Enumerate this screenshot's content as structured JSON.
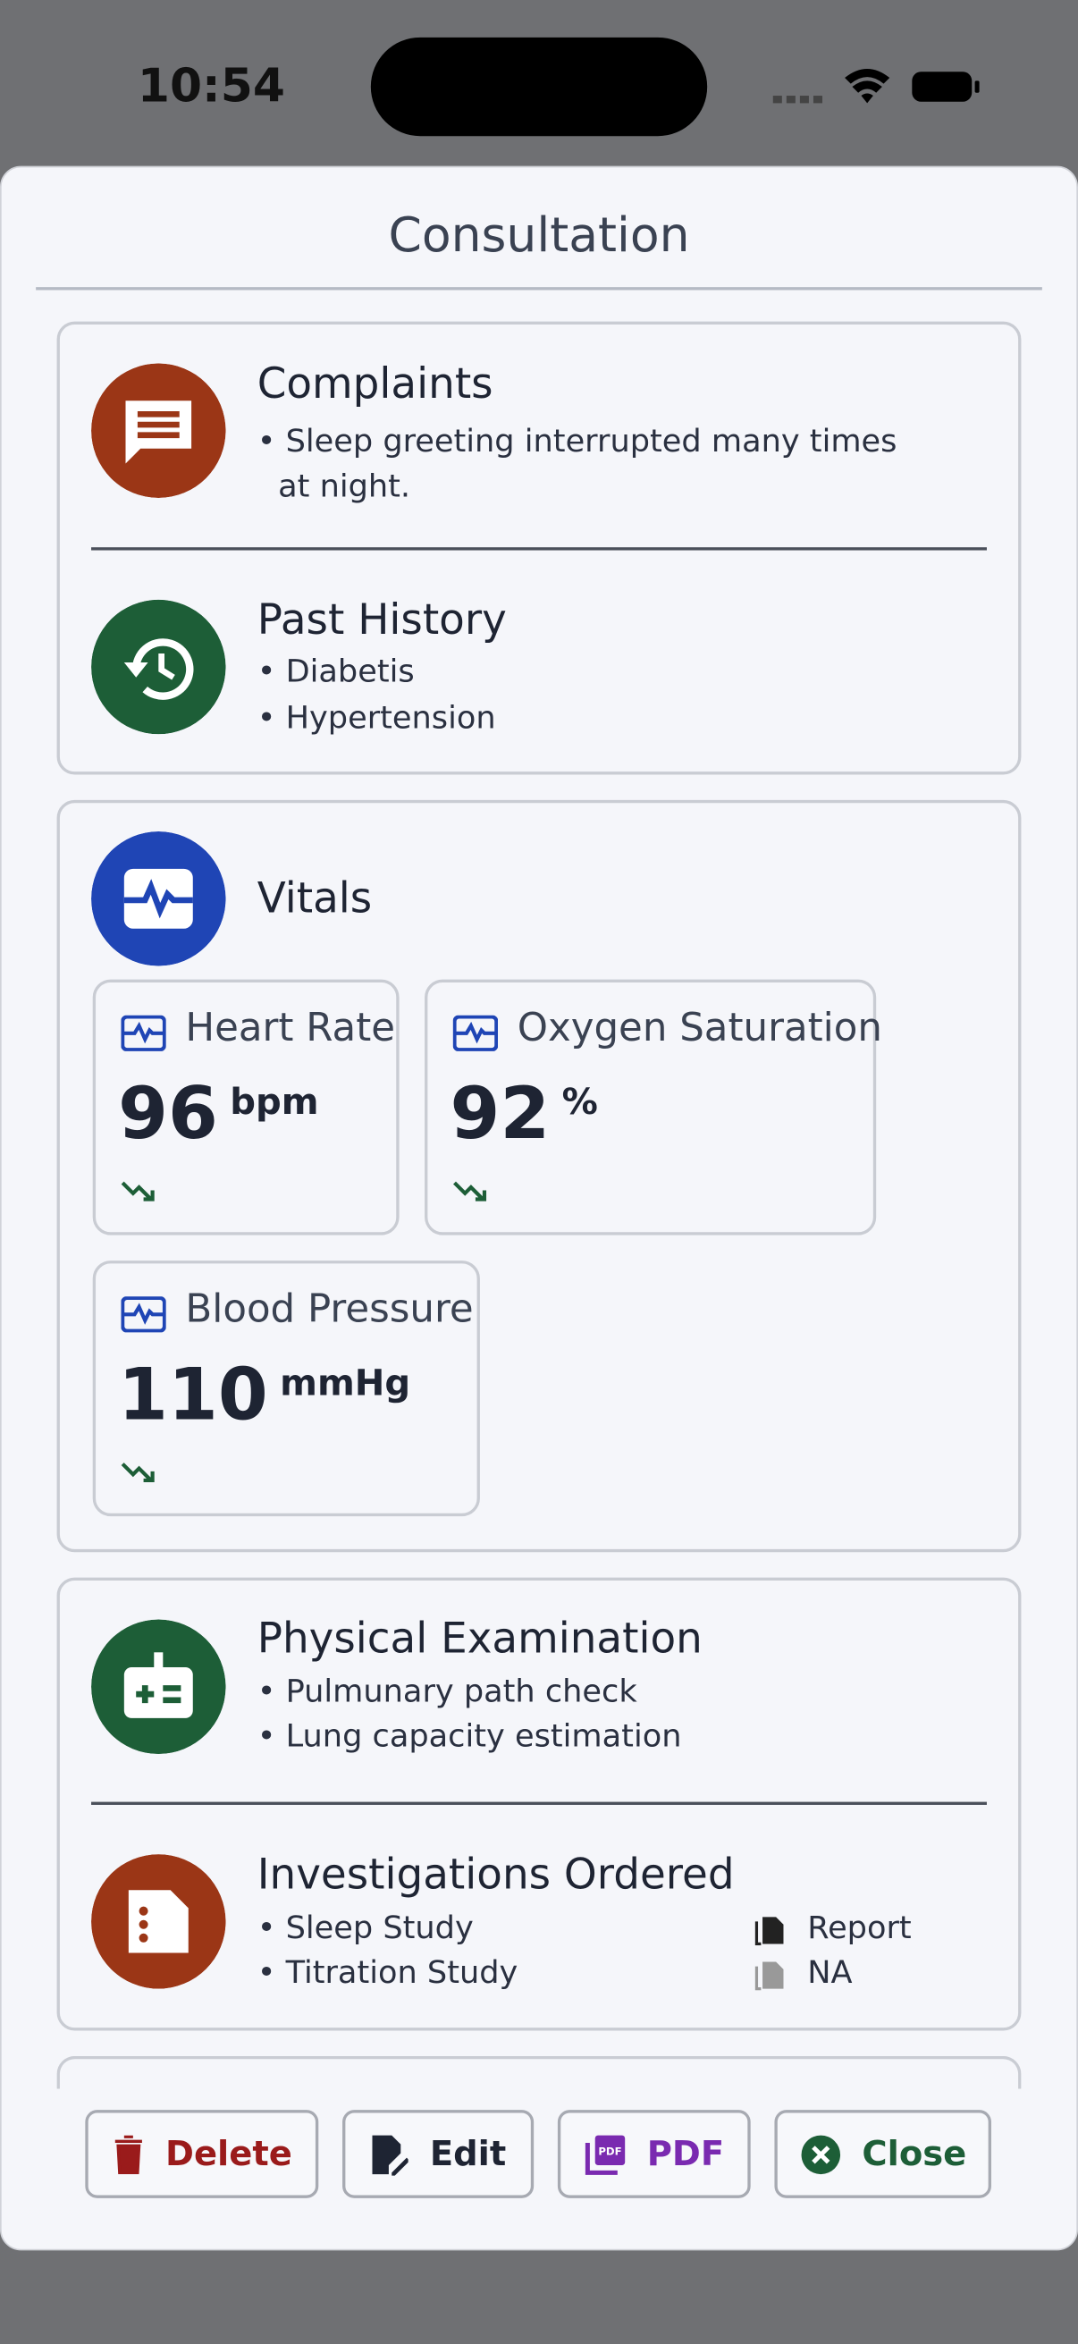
{
  "status_bar": {
    "time": "10:54"
  },
  "header": {
    "title": "Consultation"
  },
  "complaints": {
    "title": "Complaints",
    "items": [
      "Sleep greeting interrupted many times at night."
    ]
  },
  "past_history": {
    "title": "Past History",
    "items": [
      "Diabetis",
      "Hypertension"
    ]
  },
  "vitals": {
    "title": "Vitals",
    "cards": [
      {
        "label": "Heart Rate",
        "value": 96,
        "unit": "bpm"
      },
      {
        "label": "Oxygen Saturation",
        "value": 92,
        "unit": "%"
      },
      {
        "label": "Blood Pressure",
        "value": 110,
        "unit": "mmHg"
      }
    ]
  },
  "physical_examination": {
    "title": "Physical Examination",
    "items": [
      "Pulmunary path check",
      "Lung capacity estimation"
    ]
  },
  "investigations": {
    "title": "Investigations Ordered",
    "items": [
      "Sleep Study",
      "Titration Study"
    ],
    "reports": [
      "Report",
      "NA"
    ]
  },
  "buttons": [
    "Delete",
    "Edit",
    "PDF",
    "Close"
  ]
}
